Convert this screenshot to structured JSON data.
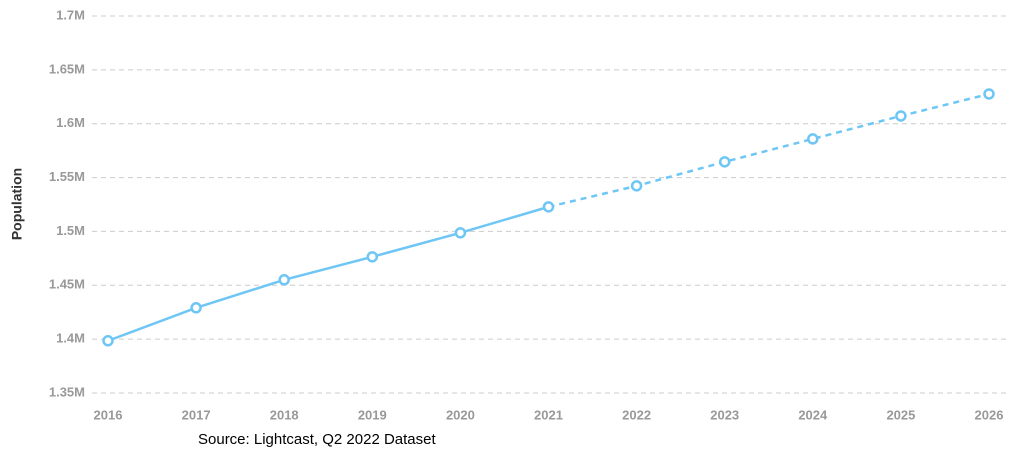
{
  "chart_data": {
    "type": "line",
    "y_label": "Population",
    "source": "Source: Lightcast, Q2 2022 Dataset",
    "categories": [
      "2016",
      "2017",
      "2018",
      "2019",
      "2020",
      "2021",
      "2022",
      "2023",
      "2024",
      "2025",
      "2026"
    ],
    "values": [
      1398500,
      1429100,
      1455100,
      1476400,
      1498700,
      1522800,
      1542300,
      1564600,
      1585900,
      1607200,
      1627600
    ],
    "forecast_from": "2021",
    "color": "#6ec6f5",
    "ylim": [
      1350000,
      1700000
    ],
    "yticks": [
      {
        "value": 1350000,
        "label": "1.35M"
      },
      {
        "value": 1400000,
        "label": "1.4M"
      },
      {
        "value": 1450000,
        "label": "1.45M"
      },
      {
        "value": 1500000,
        "label": "1.5M"
      },
      {
        "value": 1550000,
        "label": "1.55M"
      },
      {
        "value": 1600000,
        "label": "1.6M"
      },
      {
        "value": 1650000,
        "label": "1.65M"
      },
      {
        "value": 1700000,
        "label": "1.7M"
      }
    ],
    "grid": true
  }
}
